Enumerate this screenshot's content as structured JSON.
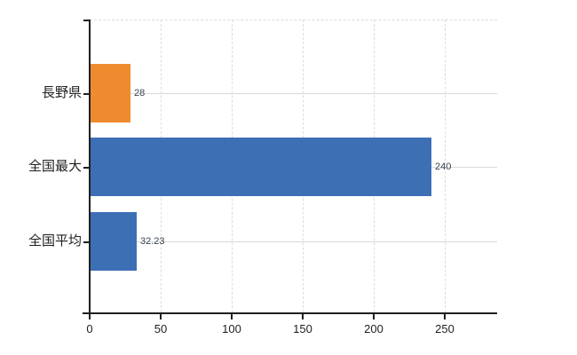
{
  "chart_data": {
    "type": "bar",
    "orientation": "horizontal",
    "title": "",
    "xlabel": "",
    "ylabel": "",
    "categories": [
      "長野県",
      "全国最大",
      "全国平均"
    ],
    "values": [
      28,
      240,
      32.23
    ],
    "value_labels": [
      "28",
      "240",
      "32.23"
    ],
    "bar_colors": [
      "#ED8B2E",
      "#3D6FB5",
      "#3D6FB5"
    ],
    "x_ticks": [
      0,
      50,
      100,
      150,
      200,
      250
    ],
    "xlim": [
      0,
      287
    ],
    "grid": true,
    "legend": false,
    "legend_position": "none"
  },
  "colors": {
    "background": "#FFFFFF",
    "bar_orange": "#ED8B2E",
    "bar_blue": "#3D6FB5",
    "axis": "#1F1F1F",
    "gridline_horizontal": "#D6DAD4",
    "gridline_vertical": "#DCDCDC",
    "category_label": "#1F1F1F",
    "value_label": "#3A4354",
    "tick_label": "#1F1F1F"
  }
}
